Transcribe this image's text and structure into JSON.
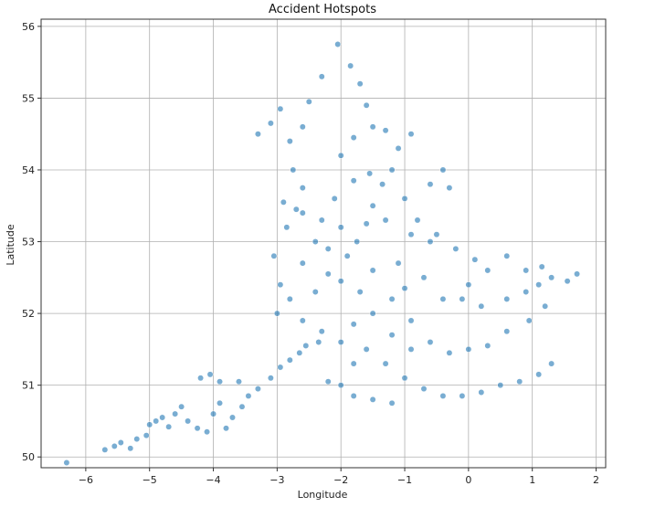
{
  "chart_data": {
    "type": "scatter",
    "title": "Accident Hotspots",
    "xlabel": "Longitude",
    "ylabel": "Latitude",
    "xlim": [
      -6.7,
      2.15
    ],
    "ylim": [
      49.85,
      56.1
    ],
    "xticks": [
      -6,
      -5,
      -4,
      -3,
      -2,
      -1,
      0,
      1,
      2
    ],
    "yticks": [
      50,
      51,
      52,
      53,
      54,
      55,
      56
    ],
    "grid": true,
    "legend": "none",
    "point_color": "#1f77b4",
    "point_edge_color": "#ffffff",
    "point_alpha": 0.6,
    "series": [
      {
        "values": [
          [
            -6.3,
            49.92
          ],
          [
            -5.7,
            50.1
          ],
          [
            -5.55,
            50.15
          ],
          [
            -5.45,
            50.2
          ],
          [
            -5.3,
            50.12
          ],
          [
            -5.2,
            50.25
          ],
          [
            -5.05,
            50.3
          ],
          [
            -5.0,
            50.45
          ],
          [
            -4.9,
            50.5
          ],
          [
            -4.8,
            50.55
          ],
          [
            -4.7,
            50.42
          ],
          [
            -4.6,
            50.6
          ],
          [
            -4.5,
            50.7
          ],
          [
            -4.4,
            50.5
          ],
          [
            -4.25,
            50.4
          ],
          [
            -4.1,
            50.35
          ],
          [
            -4.0,
            50.6
          ],
          [
            -3.9,
            50.75
          ],
          [
            -3.8,
            50.4
          ],
          [
            -3.7,
            50.55
          ],
          [
            -3.55,
            50.7
          ],
          [
            -3.45,
            50.85
          ],
          [
            -4.2,
            51.1
          ],
          [
            -4.05,
            51.15
          ],
          [
            -3.9,
            51.05
          ],
          [
            -3.6,
            51.05
          ],
          [
            -3.3,
            50.95
          ],
          [
            -3.1,
            51.1
          ],
          [
            -2.95,
            51.25
          ],
          [
            -2.8,
            51.35
          ],
          [
            -2.65,
            51.45
          ],
          [
            -2.55,
            51.55
          ],
          [
            -2.35,
            51.6
          ],
          [
            -3.0,
            52.0
          ],
          [
            -2.95,
            52.4
          ],
          [
            -3.05,
            52.8
          ],
          [
            -2.85,
            53.2
          ],
          [
            -2.7,
            53.45
          ],
          [
            -2.6,
            53.75
          ],
          [
            -2.75,
            54.0
          ],
          [
            -3.3,
            54.5
          ],
          [
            -3.1,
            54.65
          ],
          [
            -2.95,
            54.85
          ],
          [
            -2.8,
            54.4
          ],
          [
            -2.6,
            54.6
          ],
          [
            -2.4,
            52.3
          ],
          [
            -2.2,
            52.55
          ],
          [
            -2.0,
            52.45
          ],
          [
            -1.9,
            52.8
          ],
          [
            -1.75,
            53.0
          ],
          [
            -1.6,
            53.25
          ],
          [
            -1.5,
            53.5
          ],
          [
            -1.35,
            53.8
          ],
          [
            -1.2,
            54.0
          ],
          [
            -1.1,
            54.3
          ],
          [
            -1.5,
            54.6
          ],
          [
            -1.6,
            54.9
          ],
          [
            -1.7,
            55.2
          ],
          [
            -1.85,
            55.45
          ],
          [
            -2.05,
            55.75
          ],
          [
            -2.3,
            55.3
          ],
          [
            -2.5,
            54.95
          ],
          [
            -1.0,
            53.6
          ],
          [
            -0.8,
            53.3
          ],
          [
            -0.6,
            53.8
          ],
          [
            -0.3,
            53.75
          ],
          [
            -0.4,
            54.0
          ],
          [
            -0.5,
            53.1
          ],
          [
            -0.2,
            52.9
          ],
          [
            0.1,
            52.75
          ],
          [
            0.3,
            52.6
          ],
          [
            0.6,
            52.8
          ],
          [
            0.9,
            52.6
          ],
          [
            1.15,
            52.65
          ],
          [
            1.3,
            52.5
          ],
          [
            1.55,
            52.45
          ],
          [
            1.7,
            52.55
          ],
          [
            1.2,
            52.1
          ],
          [
            0.95,
            51.9
          ],
          [
            0.6,
            51.75
          ],
          [
            0.3,
            51.55
          ],
          [
            0.0,
            51.5
          ],
          [
            -0.3,
            51.45
          ],
          [
            -0.6,
            51.6
          ],
          [
            -0.9,
            51.9
          ],
          [
            -1.2,
            52.2
          ],
          [
            -1.5,
            52.0
          ],
          [
            -1.8,
            51.85
          ],
          [
            -1.6,
            51.5
          ],
          [
            -1.3,
            51.3
          ],
          [
            -1.0,
            51.1
          ],
          [
            -0.7,
            50.95
          ],
          [
            -0.4,
            50.85
          ],
          [
            -0.1,
            50.85
          ],
          [
            0.2,
            50.9
          ],
          [
            0.5,
            51.0
          ],
          [
            0.8,
            51.05
          ],
          [
            1.1,
            51.15
          ],
          [
            1.3,
            51.3
          ],
          [
            -1.2,
            50.75
          ],
          [
            -1.5,
            50.8
          ],
          [
            -1.8,
            50.85
          ],
          [
            -2.0,
            51.0
          ],
          [
            -2.2,
            51.05
          ],
          [
            -1.8,
            51.3
          ],
          [
            -1.5,
            52.6
          ],
          [
            -1.1,
            52.7
          ],
          [
            -0.7,
            52.5
          ],
          [
            -0.4,
            52.2
          ],
          [
            -0.1,
            52.2
          ],
          [
            -2.2,
            52.9
          ],
          [
            -2.3,
            53.3
          ],
          [
            -2.1,
            53.6
          ],
          [
            -1.8,
            53.85
          ],
          [
            -1.55,
            53.95
          ],
          [
            -2.0,
            54.2
          ],
          [
            -1.8,
            54.45
          ],
          [
            -1.3,
            54.55
          ],
          [
            -0.9,
            54.5
          ],
          [
            -2.4,
            53.0
          ],
          [
            -2.6,
            52.7
          ],
          [
            -2.8,
            52.2
          ],
          [
            -2.6,
            51.9
          ],
          [
            -2.3,
            51.75
          ],
          [
            -2.0,
            51.6
          ],
          [
            -1.2,
            51.7
          ],
          [
            -0.9,
            51.5
          ],
          [
            0.2,
            52.1
          ],
          [
            0.6,
            52.2
          ],
          [
            0.9,
            52.3
          ],
          [
            1.1,
            52.4
          ],
          [
            0.0,
            52.4
          ],
          [
            -0.6,
            53.0
          ],
          [
            -0.9,
            53.1
          ],
          [
            -1.3,
            53.3
          ],
          [
            -2.0,
            53.2
          ],
          [
            -2.6,
            53.4
          ],
          [
            -2.9,
            53.55
          ],
          [
            -1.7,
            52.3
          ],
          [
            -1.0,
            52.35
          ]
        ]
      }
    ]
  }
}
